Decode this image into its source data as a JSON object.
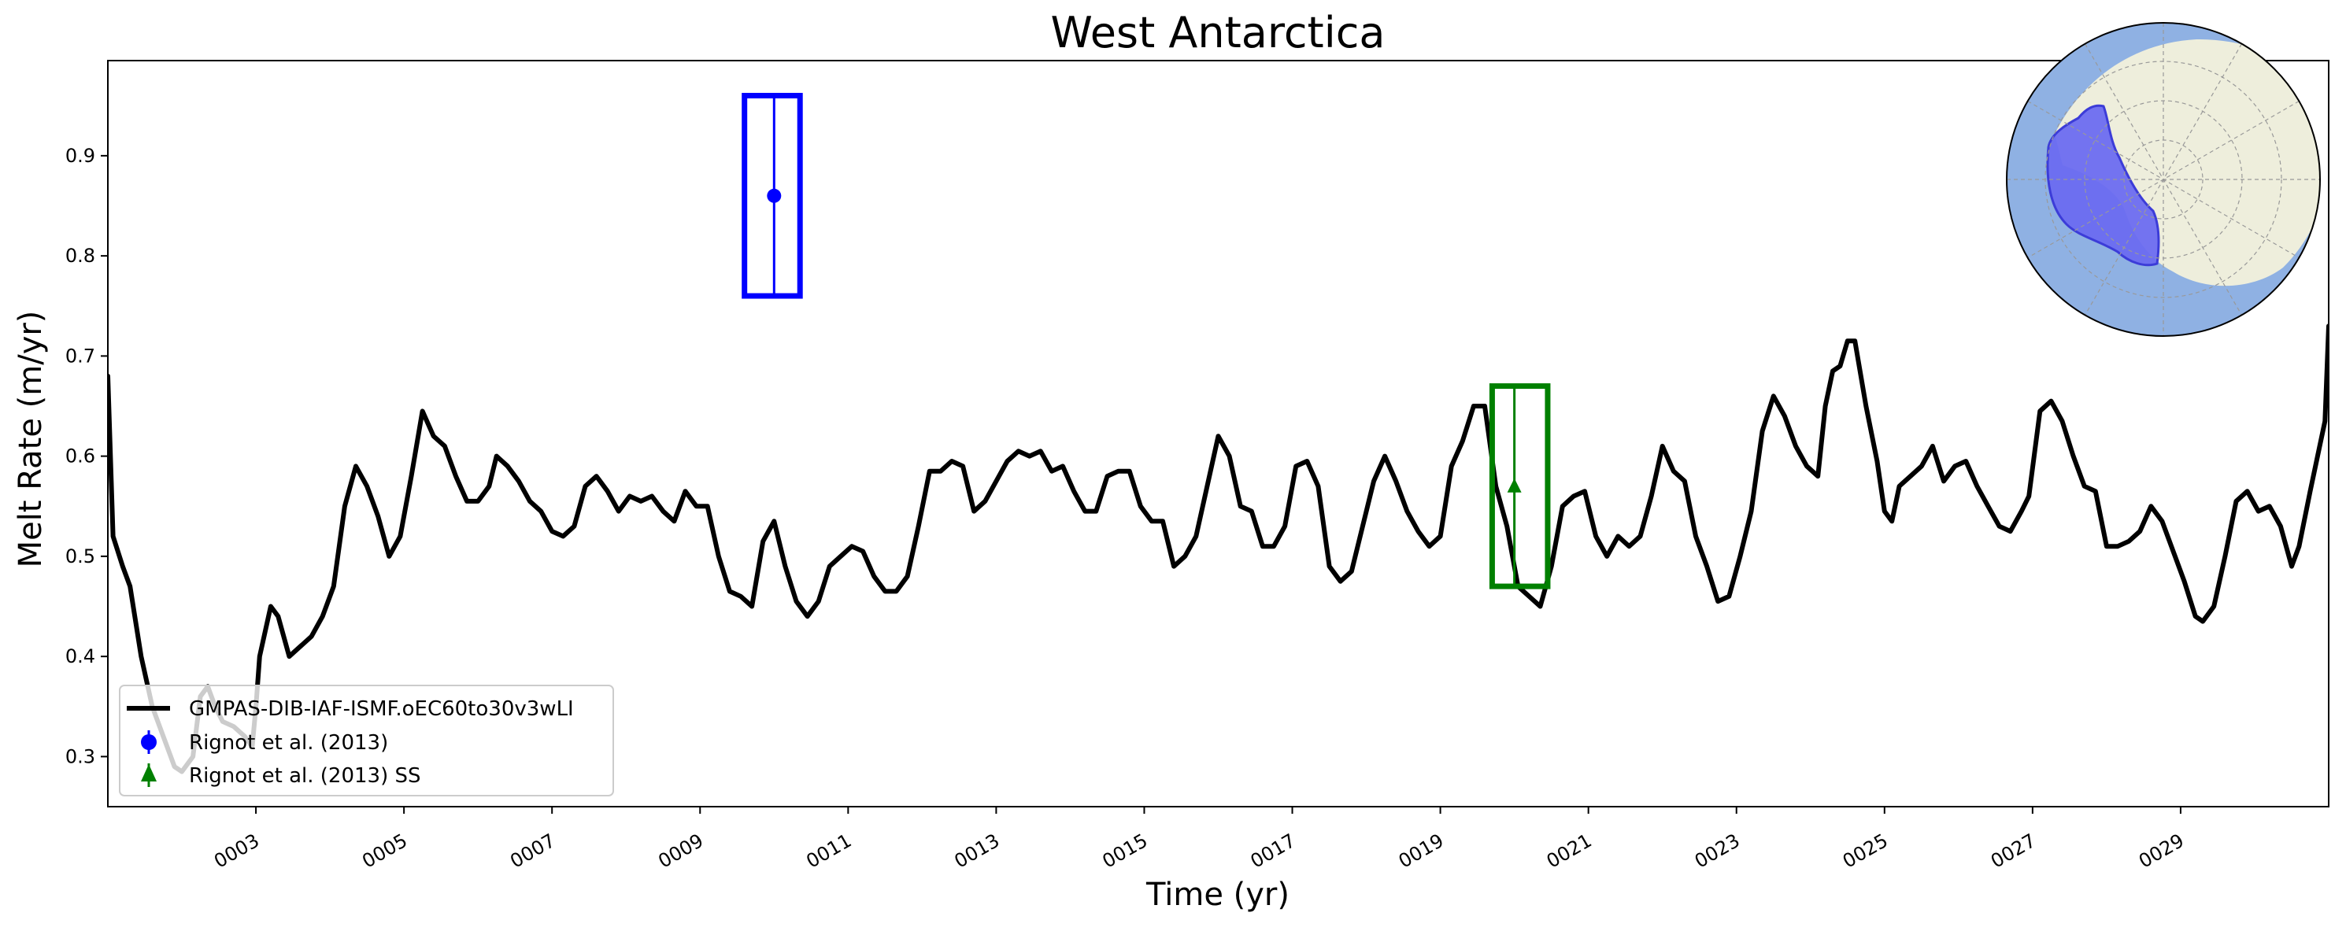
{
  "chart_data": {
    "type": "line",
    "title": "West Antarctica",
    "xlabel": "Time (yr)",
    "ylabel": "Melt Rate (m/yr)",
    "xlim": [
      1.0,
      31.0
    ],
    "ylim": [
      0.25,
      0.995
    ],
    "x_ticks": [
      3,
      5,
      7,
      9,
      11,
      13,
      15,
      17,
      19,
      21,
      23,
      25,
      27,
      29
    ],
    "x_tick_labels": [
      "0003",
      "0005",
      "0007",
      "0009",
      "0011",
      "0013",
      "0015",
      "0017",
      "0019",
      "0021",
      "0023",
      "0025",
      "0027",
      "0029"
    ],
    "y_ticks": [
      0.3,
      0.4,
      0.5,
      0.6,
      0.7,
      0.8,
      0.9
    ],
    "y_tick_labels": [
      "0.3",
      "0.4",
      "0.5",
      "0.6",
      "0.7",
      "0.8",
      "0.9"
    ],
    "grid": false,
    "legend_position": "lower-left",
    "series": [
      {
        "name": "GMPAS-DIB-IAF-ISMF.oEC60to30v3wLI",
        "color": "#000000",
        "points": [
          [
            1.0,
            0.68
          ],
          [
            1.07,
            0.52
          ],
          [
            1.2,
            0.49
          ],
          [
            1.3,
            0.47
          ],
          [
            1.45,
            0.4
          ],
          [
            1.6,
            0.35
          ],
          [
            1.75,
            0.32
          ],
          [
            1.9,
            0.29
          ],
          [
            2.0,
            0.285
          ],
          [
            2.15,
            0.3
          ],
          [
            2.25,
            0.36
          ],
          [
            2.35,
            0.37
          ],
          [
            2.45,
            0.35
          ],
          [
            2.55,
            0.335
          ],
          [
            2.7,
            0.33
          ],
          [
            2.85,
            0.32
          ],
          [
            2.95,
            0.31
          ],
          [
            3.0,
            0.35
          ],
          [
            3.05,
            0.4
          ],
          [
            3.2,
            0.45
          ],
          [
            3.3,
            0.44
          ],
          [
            3.45,
            0.4
          ],
          [
            3.6,
            0.41
          ],
          [
            3.75,
            0.42
          ],
          [
            3.9,
            0.44
          ],
          [
            4.05,
            0.47
          ],
          [
            4.2,
            0.55
          ],
          [
            4.35,
            0.59
          ],
          [
            4.5,
            0.57
          ],
          [
            4.65,
            0.54
          ],
          [
            4.8,
            0.5
          ],
          [
            4.95,
            0.52
          ],
          [
            5.1,
            0.58
          ],
          [
            5.25,
            0.645
          ],
          [
            5.4,
            0.62
          ],
          [
            5.55,
            0.61
          ],
          [
            5.7,
            0.58
          ],
          [
            5.85,
            0.555
          ],
          [
            6.0,
            0.555
          ],
          [
            6.15,
            0.57
          ],
          [
            6.25,
            0.6
          ],
          [
            6.4,
            0.59
          ],
          [
            6.55,
            0.575
          ],
          [
            6.7,
            0.555
          ],
          [
            6.85,
            0.545
          ],
          [
            7.0,
            0.525
          ],
          [
            7.15,
            0.52
          ],
          [
            7.3,
            0.53
          ],
          [
            7.45,
            0.57
          ],
          [
            7.6,
            0.58
          ],
          [
            7.75,
            0.565
          ],
          [
            7.9,
            0.545
          ],
          [
            8.05,
            0.56
          ],
          [
            8.2,
            0.555
          ],
          [
            8.35,
            0.56
          ],
          [
            8.5,
            0.545
          ],
          [
            8.65,
            0.535
          ],
          [
            8.8,
            0.565
          ],
          [
            8.95,
            0.55
          ],
          [
            9.1,
            0.55
          ],
          [
            9.25,
            0.5
          ],
          [
            9.4,
            0.465
          ],
          [
            9.55,
            0.46
          ],
          [
            9.7,
            0.45
          ],
          [
            9.85,
            0.515
          ],
          [
            10.0,
            0.535
          ],
          [
            10.15,
            0.49
          ],
          [
            10.3,
            0.455
          ],
          [
            10.45,
            0.44
          ],
          [
            10.6,
            0.455
          ],
          [
            10.75,
            0.49
          ],
          [
            10.9,
            0.5
          ],
          [
            11.05,
            0.51
          ],
          [
            11.2,
            0.505
          ],
          [
            11.35,
            0.48
          ],
          [
            11.5,
            0.465
          ],
          [
            11.65,
            0.465
          ],
          [
            11.8,
            0.48
          ],
          [
            11.95,
            0.53
          ],
          [
            12.1,
            0.585
          ],
          [
            12.25,
            0.585
          ],
          [
            12.4,
            0.595
          ],
          [
            12.55,
            0.59
          ],
          [
            12.7,
            0.545
          ],
          [
            12.85,
            0.555
          ],
          [
            13.0,
            0.575
          ],
          [
            13.15,
            0.595
          ],
          [
            13.3,
            0.605
          ],
          [
            13.45,
            0.6
          ],
          [
            13.6,
            0.605
          ],
          [
            13.75,
            0.585
          ],
          [
            13.9,
            0.59
          ],
          [
            14.05,
            0.565
          ],
          [
            14.2,
            0.545
          ],
          [
            14.35,
            0.545
          ],
          [
            14.5,
            0.58
          ],
          [
            14.65,
            0.585
          ],
          [
            14.8,
            0.585
          ],
          [
            14.95,
            0.55
          ],
          [
            15.1,
            0.535
          ],
          [
            15.25,
            0.535
          ],
          [
            15.4,
            0.49
          ],
          [
            15.55,
            0.5
          ],
          [
            15.7,
            0.52
          ],
          [
            15.85,
            0.57
          ],
          [
            16.0,
            0.62
          ],
          [
            16.15,
            0.6
          ],
          [
            16.3,
            0.55
          ],
          [
            16.45,
            0.545
          ],
          [
            16.6,
            0.51
          ],
          [
            16.75,
            0.51
          ],
          [
            16.9,
            0.53
          ],
          [
            17.05,
            0.59
          ],
          [
            17.2,
            0.595
          ],
          [
            17.35,
            0.57
          ],
          [
            17.5,
            0.49
          ],
          [
            17.65,
            0.475
          ],
          [
            17.8,
            0.485
          ],
          [
            17.95,
            0.53
          ],
          [
            18.1,
            0.575
          ],
          [
            18.25,
            0.6
          ],
          [
            18.4,
            0.575
          ],
          [
            18.55,
            0.545
          ],
          [
            18.7,
            0.525
          ],
          [
            18.85,
            0.51
          ],
          [
            19.0,
            0.52
          ],
          [
            19.15,
            0.59
          ],
          [
            19.3,
            0.615
          ],
          [
            19.45,
            0.65
          ],
          [
            19.6,
            0.65
          ],
          [
            19.75,
            0.57
          ],
          [
            19.9,
            0.53
          ],
          [
            20.05,
            0.47
          ],
          [
            20.2,
            0.46
          ],
          [
            20.35,
            0.45
          ],
          [
            20.5,
            0.49
          ],
          [
            20.65,
            0.55
          ],
          [
            20.8,
            0.56
          ],
          [
            20.95,
            0.565
          ],
          [
            21.1,
            0.52
          ],
          [
            21.25,
            0.5
          ],
          [
            21.4,
            0.52
          ],
          [
            21.55,
            0.51
          ],
          [
            21.7,
            0.52
          ],
          [
            21.85,
            0.56
          ],
          [
            22.0,
            0.61
          ],
          [
            22.15,
            0.585
          ],
          [
            22.3,
            0.575
          ],
          [
            22.45,
            0.52
          ],
          [
            22.6,
            0.49
          ],
          [
            22.75,
            0.455
          ],
          [
            22.9,
            0.46
          ],
          [
            23.05,
            0.5
          ],
          [
            23.2,
            0.545
          ],
          [
            23.35,
            0.625
          ],
          [
            23.5,
            0.66
          ],
          [
            23.65,
            0.64
          ],
          [
            23.8,
            0.61
          ],
          [
            23.95,
            0.59
          ],
          [
            24.1,
            0.58
          ],
          [
            24.2,
            0.65
          ],
          [
            24.3,
            0.685
          ],
          [
            24.4,
            0.69
          ],
          [
            24.5,
            0.715
          ],
          [
            24.6,
            0.715
          ],
          [
            24.75,
            0.65
          ],
          [
            24.9,
            0.595
          ],
          [
            25.0,
            0.545
          ],
          [
            25.1,
            0.535
          ],
          [
            25.2,
            0.57
          ],
          [
            25.35,
            0.58
          ],
          [
            25.5,
            0.59
          ],
          [
            25.65,
            0.61
          ],
          [
            25.8,
            0.575
          ],
          [
            25.95,
            0.59
          ],
          [
            26.1,
            0.595
          ],
          [
            26.25,
            0.57
          ],
          [
            26.4,
            0.55
          ],
          [
            26.55,
            0.53
          ],
          [
            26.7,
            0.525
          ],
          [
            26.85,
            0.545
          ],
          [
            26.95,
            0.56
          ],
          [
            27.1,
            0.645
          ],
          [
            27.25,
            0.655
          ],
          [
            27.4,
            0.635
          ],
          [
            27.55,
            0.6
          ],
          [
            27.7,
            0.57
          ],
          [
            27.85,
            0.565
          ],
          [
            28.0,
            0.51
          ],
          [
            28.15,
            0.51
          ],
          [
            28.3,
            0.515
          ],
          [
            28.45,
            0.525
          ],
          [
            28.6,
            0.55
          ],
          [
            28.75,
            0.535
          ],
          [
            28.9,
            0.505
          ],
          [
            29.05,
            0.475
          ],
          [
            29.2,
            0.44
          ],
          [
            29.3,
            0.435
          ],
          [
            29.45,
            0.45
          ],
          [
            29.6,
            0.5
          ],
          [
            29.75,
            0.555
          ],
          [
            29.9,
            0.565
          ],
          [
            30.05,
            0.545
          ],
          [
            30.2,
            0.55
          ],
          [
            30.35,
            0.53
          ],
          [
            30.5,
            0.49
          ],
          [
            30.6,
            0.51
          ],
          [
            30.75,
            0.565
          ],
          [
            30.85,
            0.6
          ],
          [
            30.95,
            0.635
          ],
          [
            31.0,
            0.73
          ]
        ]
      }
    ],
    "observations": [
      {
        "name": "Rignot et al. (2013)",
        "color": "#0000ff",
        "marker": "circle",
        "x": 10.0,
        "y": 0.86,
        "ymin": 0.76,
        "ymax": 0.96,
        "x_start": 9.6,
        "x_end": 10.35
      },
      {
        "name": "Rignot et al. (2013) SS",
        "color": "#008000",
        "marker": "triangle",
        "x": 20.0,
        "y": 0.57,
        "ymin": 0.47,
        "ymax": 0.67,
        "x_start": 19.7,
        "x_end": 20.45
      }
    ],
    "inset_map": {
      "colors": {
        "ocean": "#8fb1e3",
        "land": "#eeeedc",
        "region": "#6b6cf0"
      }
    }
  }
}
